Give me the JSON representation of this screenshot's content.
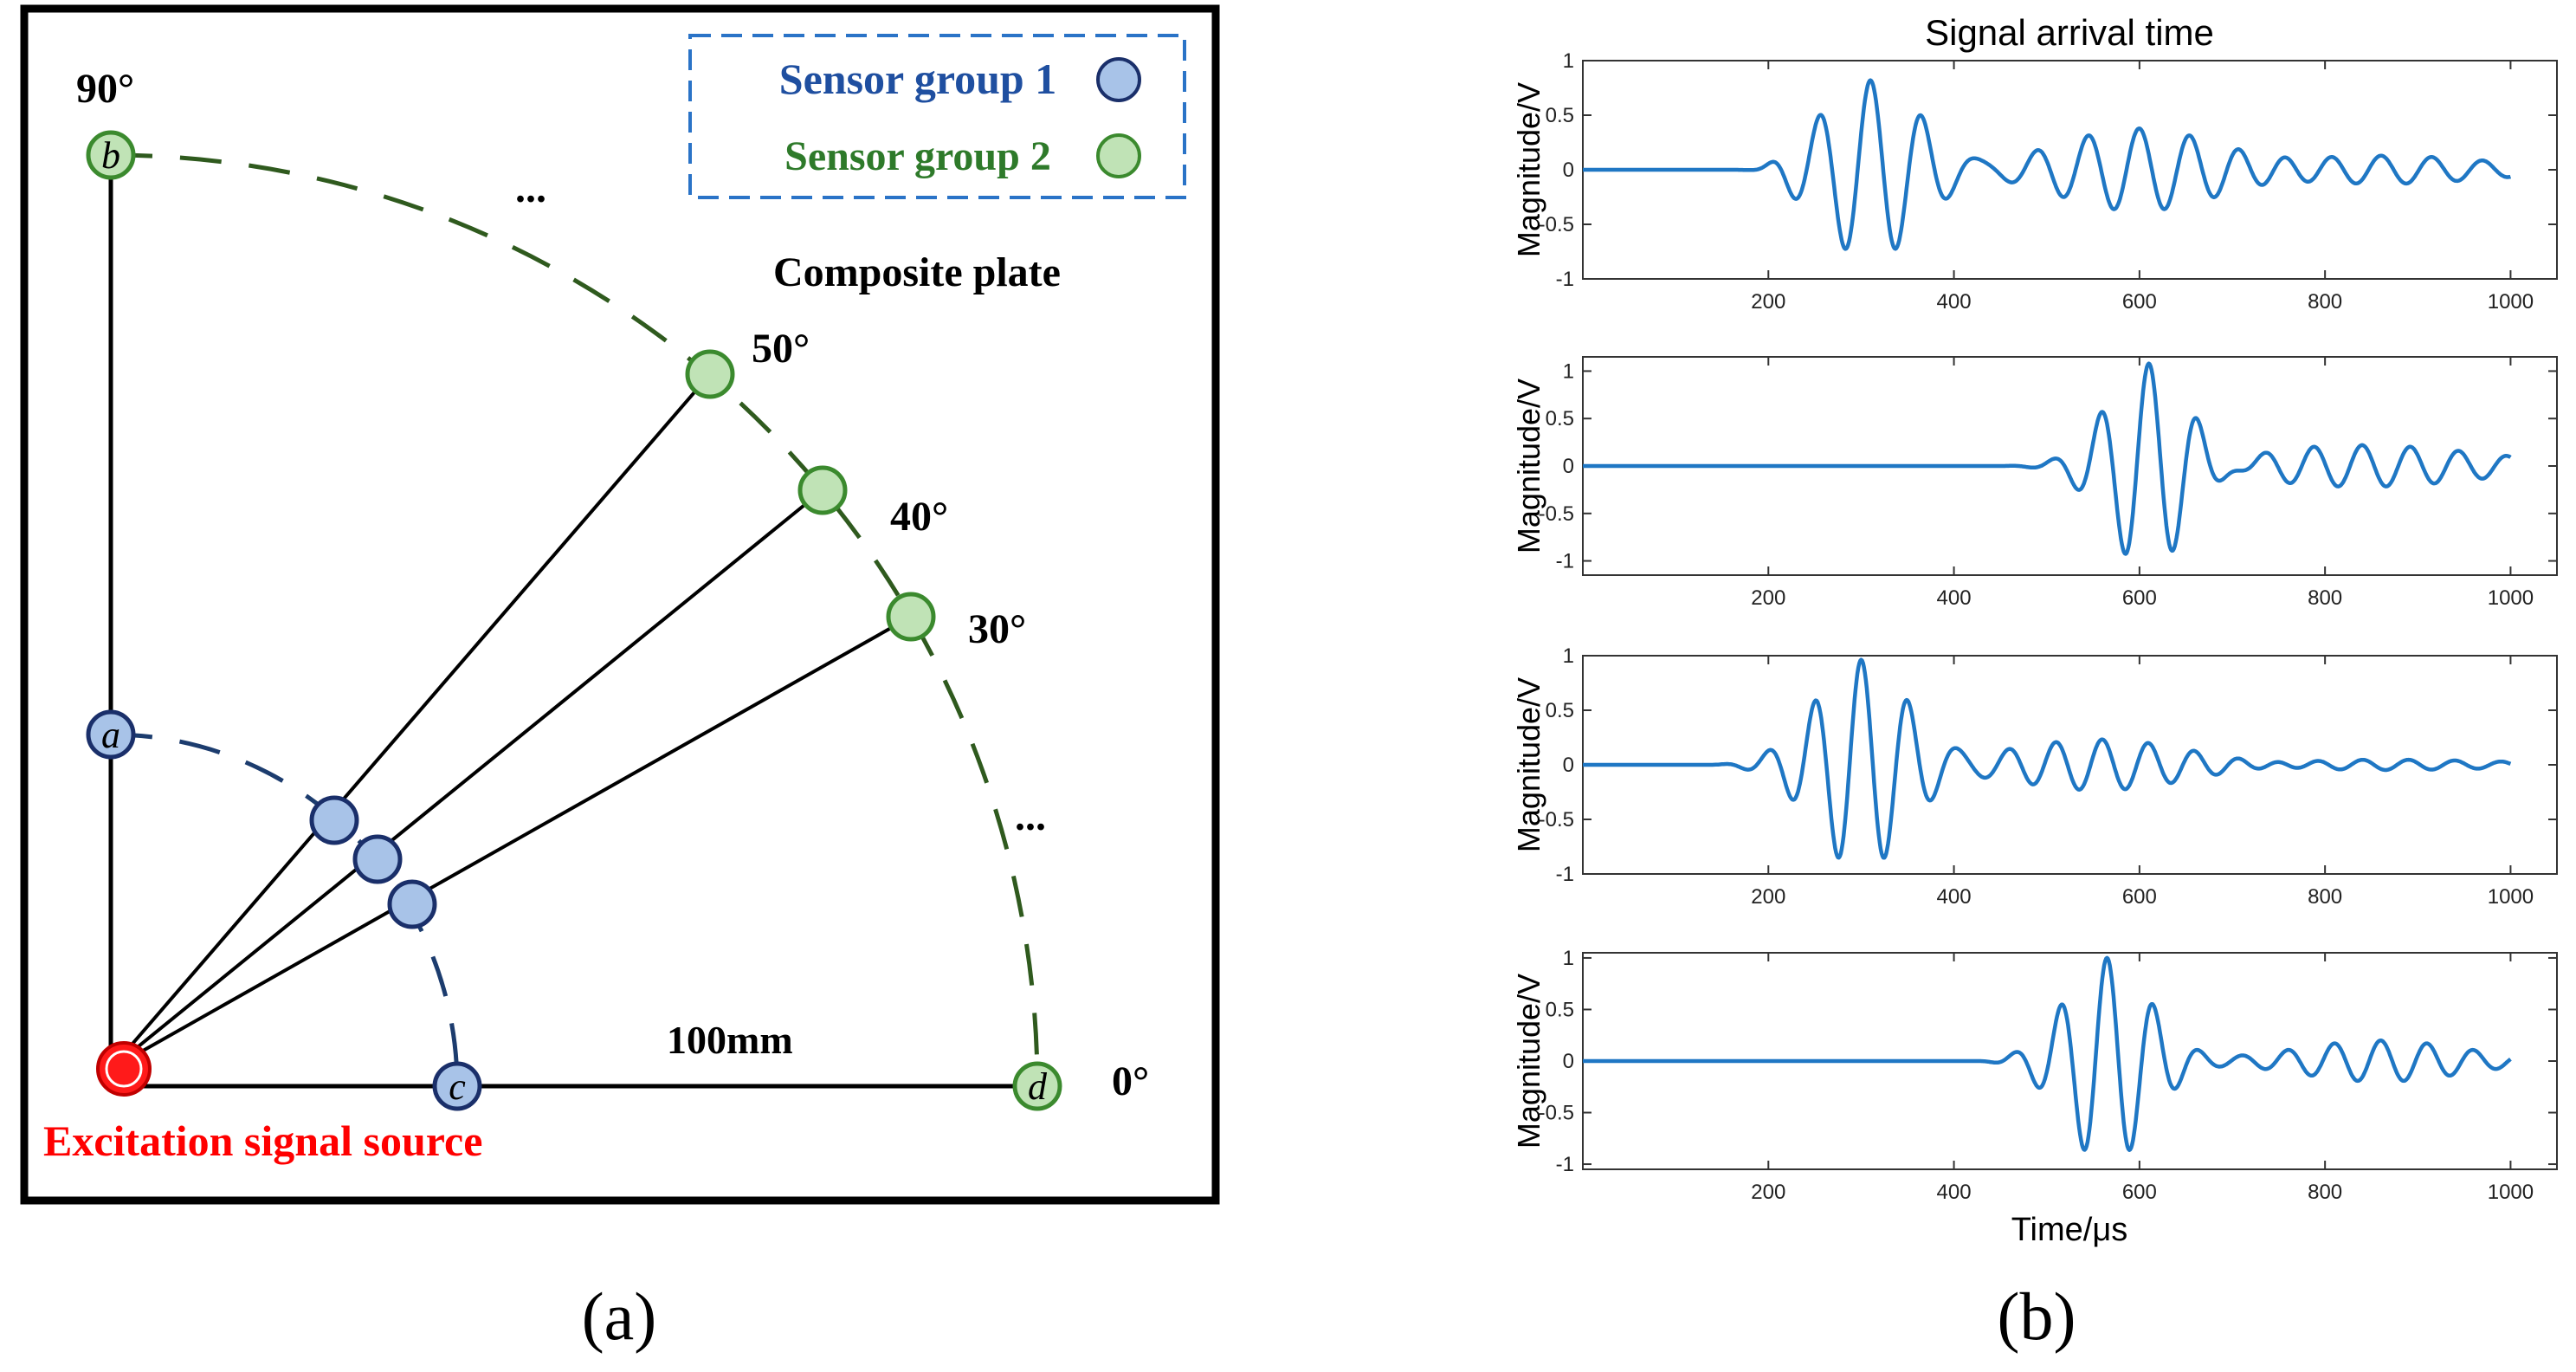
{
  "panel_a": {
    "legend": {
      "group1_label": "Sensor group 1",
      "group2_label": "Sensor group 2"
    },
    "angle_labels": {
      "a90": "90°",
      "a50": "50°",
      "a40": "40°",
      "a30": "30°",
      "a0": "0°"
    },
    "ellipsis": "...",
    "plate_label": "Composite plate",
    "distance_label": "100mm",
    "source_label": "Excitation signal source",
    "sensor_letters": {
      "a": "a",
      "b": "b",
      "c": "c",
      "d": "d"
    },
    "caption": "(a)"
  },
  "panel_b": {
    "title": "Signal arrival time",
    "ylabel": "Magnitude/V",
    "xlabel": "Time/μs",
    "caption": "(b)"
  },
  "chart_data": [
    {
      "type": "line",
      "title": "Signal arrival time",
      "xlabel": "",
      "ylabel": "Magnitude/V",
      "xlim": [
        0,
        1050
      ],
      "ylim": [
        -1,
        1
      ],
      "xticks": [
        200,
        400,
        600,
        800,
        1000
      ],
      "yticks": [
        -1,
        -0.5,
        0,
        0.5,
        1
      ],
      "onset": 200,
      "packets": [
        {
          "center": 310,
          "amplitude": 0.82,
          "sigma": 55,
          "period": 55
        },
        {
          "center": 600,
          "amplitude": 0.38,
          "sigma": 90,
          "period": 55
        },
        {
          "center": 860,
          "amplitude": 0.13,
          "sigma": 120,
          "period": 55
        }
      ]
    },
    {
      "type": "line",
      "title": "",
      "xlabel": "",
      "ylabel": "Magnitude/V",
      "xlim": [
        0,
        1050
      ],
      "ylim": [
        -1.15,
        1.15
      ],
      "xticks": [
        200,
        400,
        600,
        800,
        1000
      ],
      "yticks": [
        -1,
        -0.5,
        0,
        0.5,
        1
      ],
      "onset": 455,
      "packets": [
        {
          "center": 610,
          "amplitude": 1.12,
          "sigma": 45,
          "period": 52
        },
        {
          "center": 840,
          "amplitude": 0.22,
          "sigma": 130,
          "period": 52
        }
      ]
    },
    {
      "type": "line",
      "title": "",
      "xlabel": "",
      "ylabel": "Magnitude/V",
      "xlim": [
        0,
        1050
      ],
      "ylim": [
        -1,
        1
      ],
      "xticks": [
        200,
        400,
        600,
        800,
        1000
      ],
      "yticks": [
        -1,
        -0.5,
        0,
        0.5,
        1
      ],
      "onset": 150,
      "packets": [
        {
          "center": 300,
          "amplitude": 0.96,
          "sigma": 50,
          "period": 50
        },
        {
          "center": 560,
          "amplitude": 0.24,
          "sigma": 100,
          "period": 50
        },
        {
          "center": 840,
          "amplitude": 0.05,
          "sigma": 150,
          "period": 50
        }
      ]
    },
    {
      "type": "line",
      "title": "",
      "xlabel": "Time/μs",
      "ylabel": "Magnitude/V",
      "xlim": [
        0,
        1050
      ],
      "ylim": [
        -1.05,
        1.05
      ],
      "xticks": [
        200,
        400,
        600,
        800,
        1000
      ],
      "yticks": [
        -1,
        -0.5,
        0,
        0.5,
        1
      ],
      "onset": 440,
      "packets": [
        {
          "center": 565,
          "amplitude": 1.0,
          "sigma": 45,
          "period": 50
        },
        {
          "center": 860,
          "amplitude": 0.2,
          "sigma": 90,
          "period": 50
        }
      ]
    }
  ]
}
